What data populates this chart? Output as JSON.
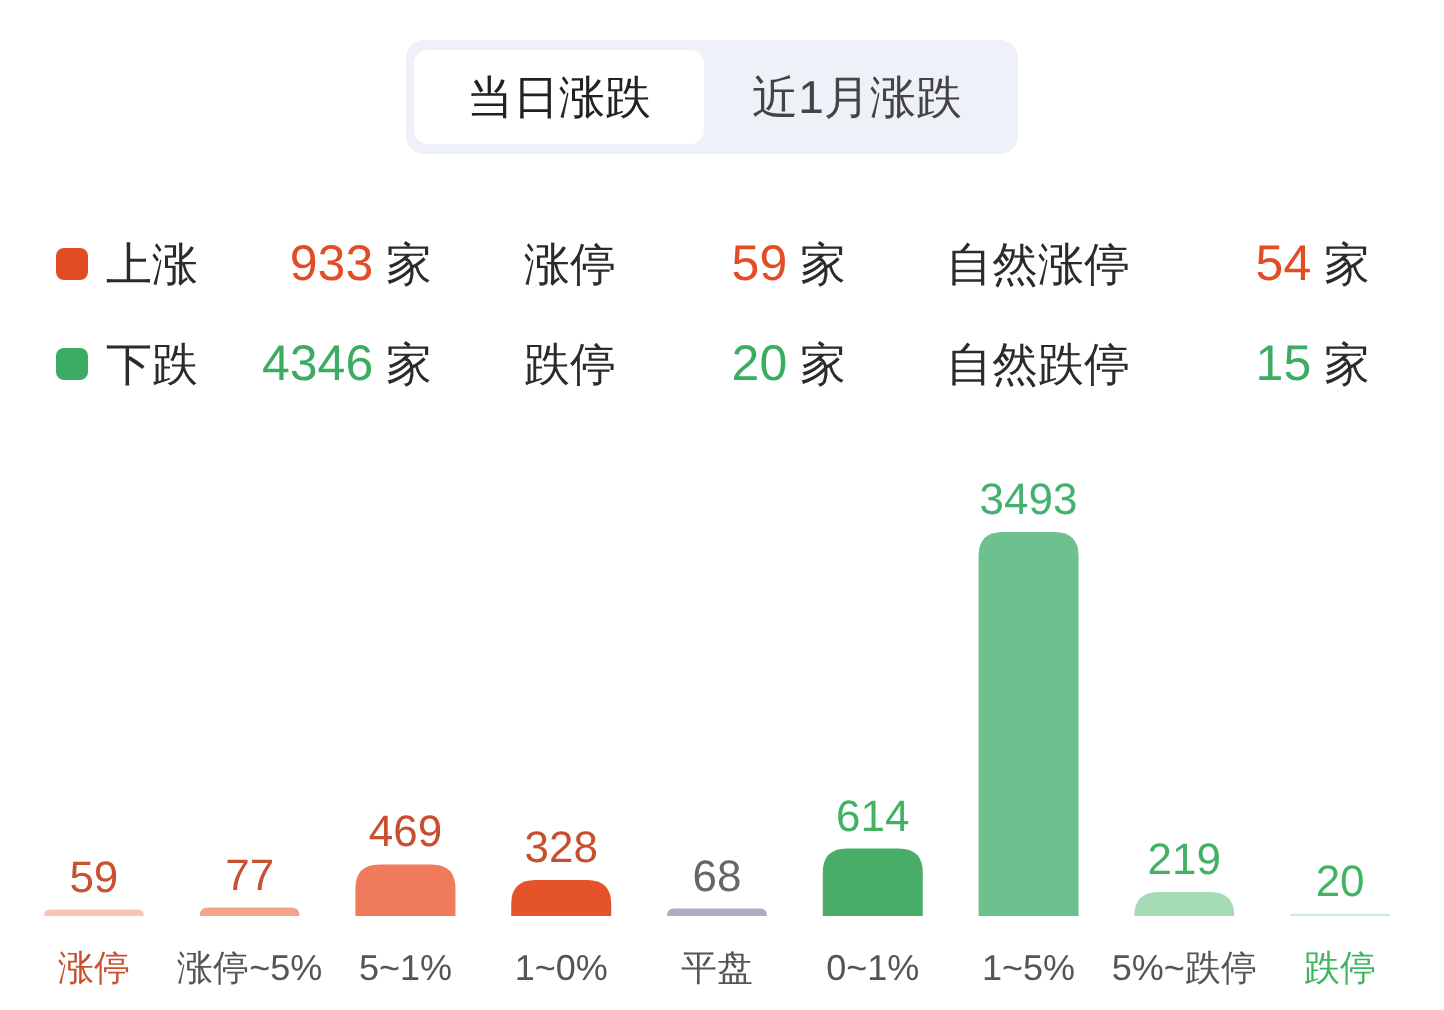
{
  "chart_data": [
    {
      "type": "other",
      "annotations": [
        "当日涨跌",
        "近1月涨跌"
      ]
    },
    {
      "type": "other",
      "colors": [
        "#e34d26",
        "#3cac63"
      ],
      "annotations": [
        "上涨",
        "933 家",
        "涨停",
        "59 家",
        "自然涨停",
        "54 家",
        "下跌",
        "4346 家",
        "跌停",
        "20 家",
        "自然跌停",
        "15 家"
      ]
    },
    {
      "type": "bar",
      "categories": [
        "涨停",
        "涨停~5%",
        "5~1%",
        "1~0%",
        "平盘",
        "0~1%",
        "1~5%",
        "5%~跌停",
        "跌停"
      ],
      "values": [
        59,
        77,
        469,
        328,
        68,
        614,
        3493,
        219,
        20
      ],
      "colors": [
        "#f8c4b4",
        "#f2a38c",
        "#ef7b5c",
        "#e5532b",
        "#aeacc0",
        "#4aae68",
        "#6cc18e",
        "#a5dbb5",
        "#c8ebd2"
      ],
      "data_labels": true
    }
  ]
}
